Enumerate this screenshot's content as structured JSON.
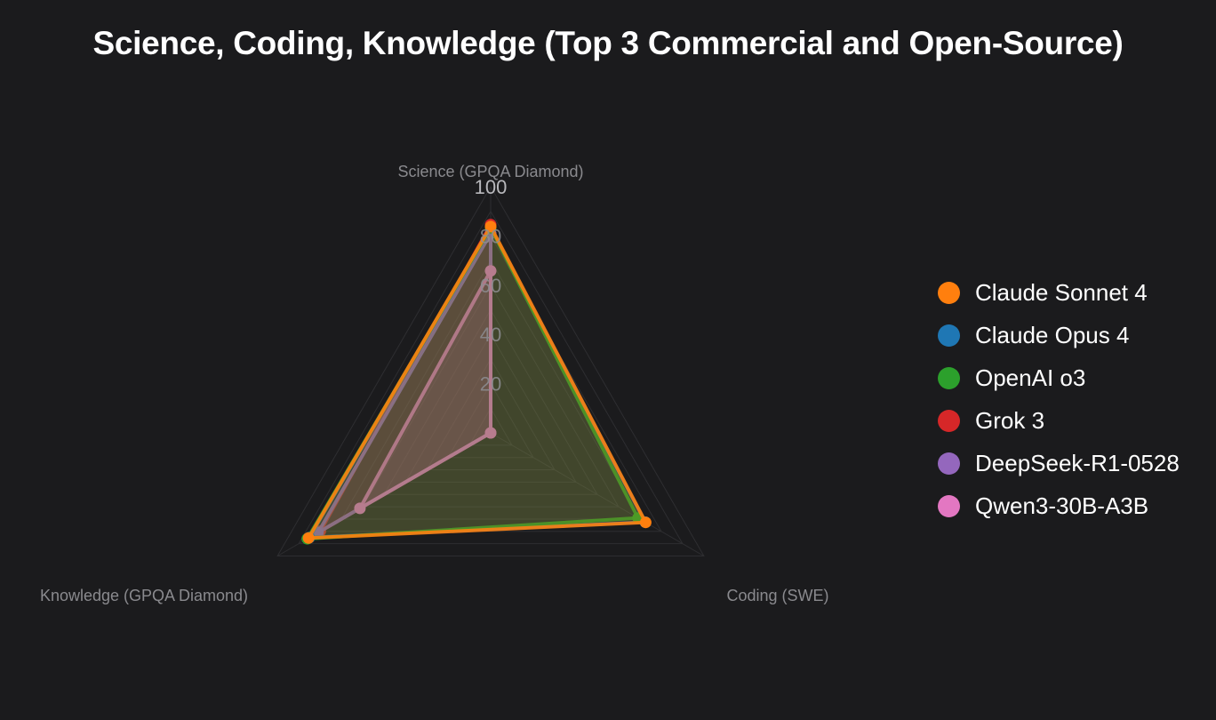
{
  "chart_data": {
    "type": "radar",
    "title": "Science, Coding, Knowledge (Top 3 Commercial and Open-Source)",
    "axes": [
      "Science (GPQA Diamond)",
      "Coding (SWE)",
      "Knowledge (GPQA Diamond)"
    ],
    "range": [
      0,
      100
    ],
    "ticks": [
      20,
      40,
      60,
      80,
      100
    ],
    "grid": true,
    "legend_position": "right",
    "series": [
      {
        "name": "Grok 3",
        "color": "#d62728",
        "values": [
          84.6,
          0,
          79.9
        ]
      },
      {
        "name": "DeepSeek-R1-0528",
        "color": "#9467bd",
        "values": [
          81.0,
          0,
          81.0
        ]
      },
      {
        "name": "Qwen3-30B-A3B",
        "color": "#e377c2",
        "values": [
          65.8,
          0,
          61.3
        ]
      },
      {
        "name": "Claude Opus 4",
        "color": "#1f77b4",
        "values": [
          83.3,
          72.5,
          85.0
        ]
      },
      {
        "name": "OpenAI o3",
        "color": "#2ca02c",
        "values": [
          83.3,
          69.1,
          86.0
        ]
      },
      {
        "name": "Claude Sonnet 4",
        "color": "#ff7f0e",
        "values": [
          83.8,
          72.7,
          85.4
        ]
      }
    ],
    "legend": [
      {
        "name": "Claude Sonnet 4",
        "color": "#ff7f0e"
      },
      {
        "name": "Claude Opus 4",
        "color": "#1f77b4"
      },
      {
        "name": "OpenAI o3",
        "color": "#2ca02c"
      },
      {
        "name": "Grok 3",
        "color": "#d62728"
      },
      {
        "name": "DeepSeek-R1-0528",
        "color": "#9467bd"
      },
      {
        "name": "Qwen3-30B-A3B",
        "color": "#e377c2"
      }
    ]
  }
}
